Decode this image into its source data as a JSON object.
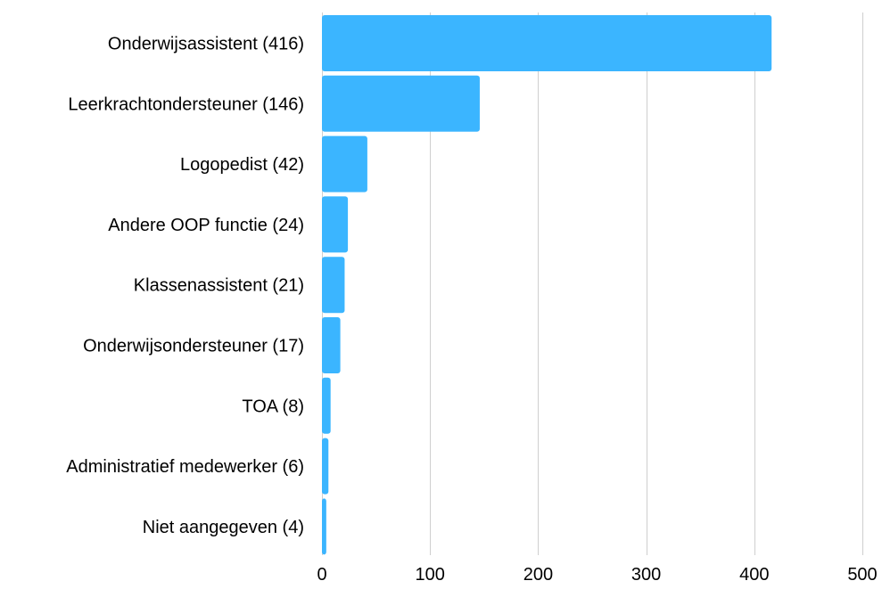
{
  "chart_data": {
    "type": "bar",
    "orientation": "horizontal",
    "categories": [
      "Onderwijsassistent (416)",
      "Leerkrachtondersteuner (146)",
      "Logopedist (42)",
      "Andere OOP functie (24)",
      "Klassenassistent (21)",
      "Onderwijsondersteuner (17)",
      "TOA (8)",
      "Administratief medewerker (6)",
      "Niet aangegeven (4)"
    ],
    "values": [
      416,
      146,
      42,
      24,
      21,
      17,
      8,
      6,
      4
    ],
    "xlim": [
      0,
      500
    ],
    "xticks": [
      "0",
      "100",
      "200",
      "300",
      "400",
      "500"
    ],
    "title": "",
    "xlabel": "",
    "ylabel": "",
    "grid": "vertical",
    "legend": "none",
    "bar_color": "#3bb5ff",
    "grid_color": "#cfcfcf"
  }
}
